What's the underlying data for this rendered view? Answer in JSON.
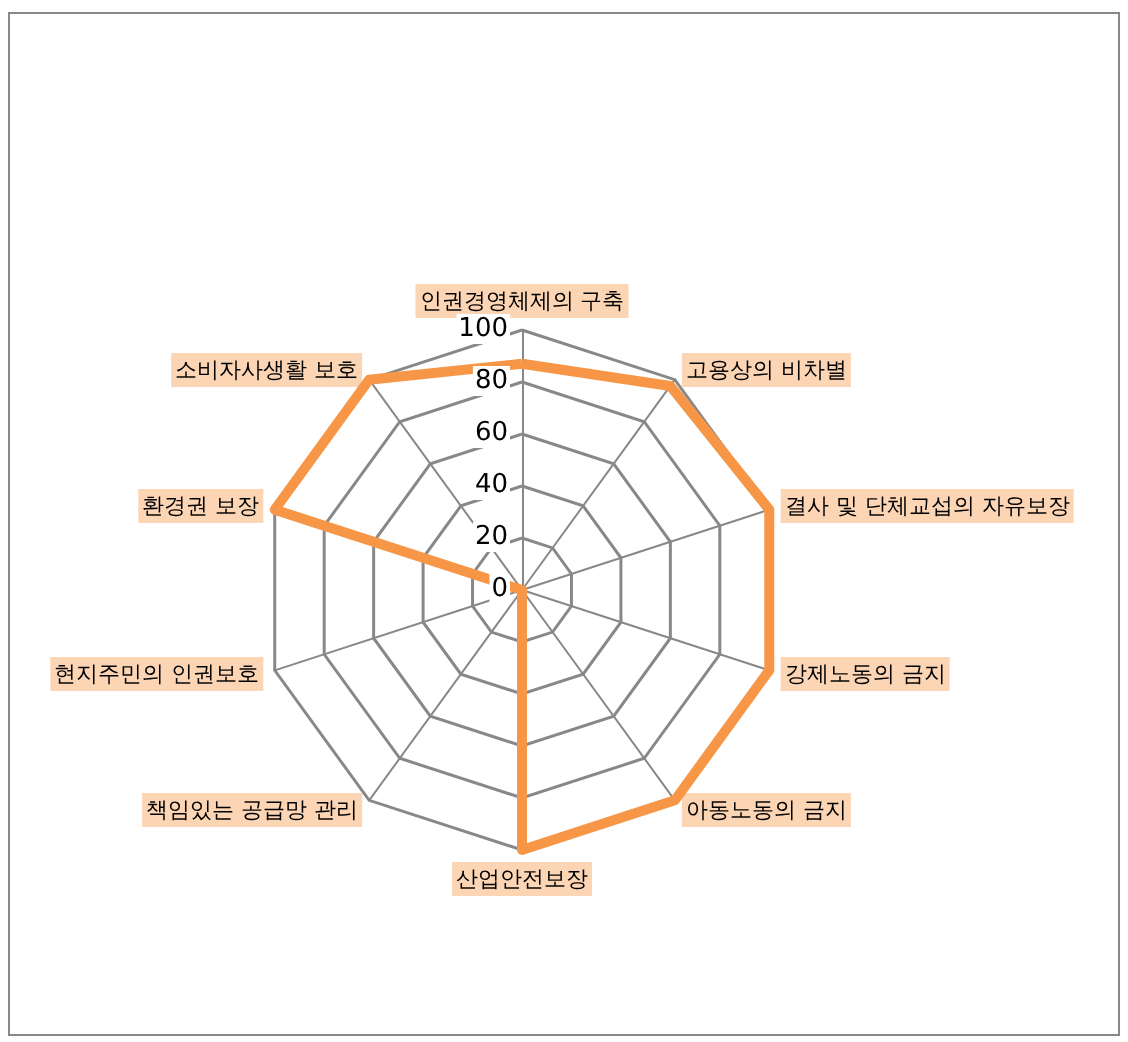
{
  "chart_data": {
    "type": "radar",
    "categories": [
      "인권경영체제의 구축",
      "고용상의 비차별",
      "결사 및 단체교섭의 자유보장",
      "강제노동의 금지",
      "아동노동의 금지",
      "산업안전보장",
      "책임있는 공급망 관리",
      "현지주민의 인권보호",
      "환경권 보장",
      "소비자사생활 보호"
    ],
    "series": [
      {
        "color": "#f79646",
        "values": [
          87,
          97,
          100,
          100,
          100,
          100,
          0,
          0,
          100,
          100
        ]
      }
    ],
    "ylim": [
      0,
      100
    ],
    "yticks": [
      0,
      20,
      40,
      60,
      80,
      100
    ],
    "grid": true,
    "marker": "none",
    "line_style": "solid"
  }
}
